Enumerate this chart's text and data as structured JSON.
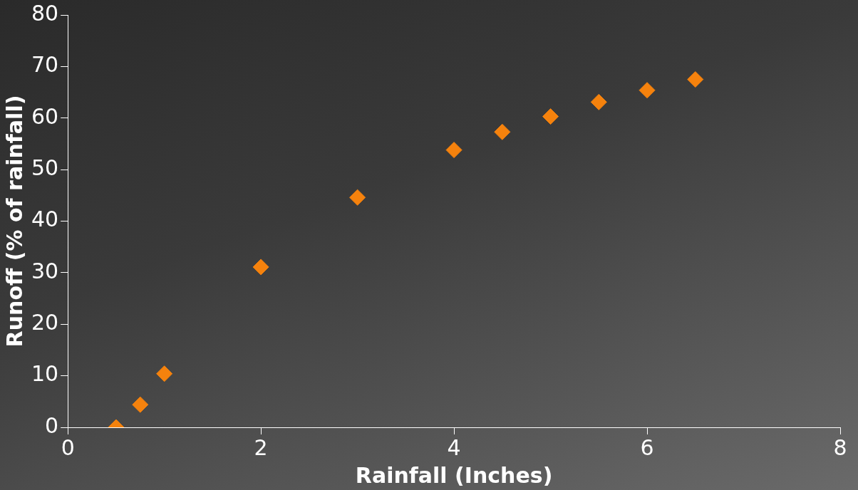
{
  "chart_data": {
    "type": "scatter",
    "xlabel": "Rainfall (Inches)",
    "ylabel": "Runoff (% of rainfall)",
    "x": [
      0.5,
      0.75,
      1,
      2,
      3,
      4,
      4.5,
      5,
      5.5,
      6,
      6.5
    ],
    "series": [
      {
        "color": "#f5820d",
        "values": [
          0,
          4.4,
          10.4,
          31.1,
          44.6,
          53.8,
          57.3,
          60.3,
          63.1,
          65.4,
          67.5
        ]
      }
    ],
    "xlim": [
      0,
      8
    ],
    "xticks": [
      0,
      2,
      4,
      6,
      8
    ],
    "ylim": [
      0,
      80
    ],
    "yticks": [
      0,
      10,
      20,
      30,
      40,
      50,
      60,
      70,
      80
    ],
    "grid": false,
    "legend": false,
    "marker": "diamond"
  }
}
